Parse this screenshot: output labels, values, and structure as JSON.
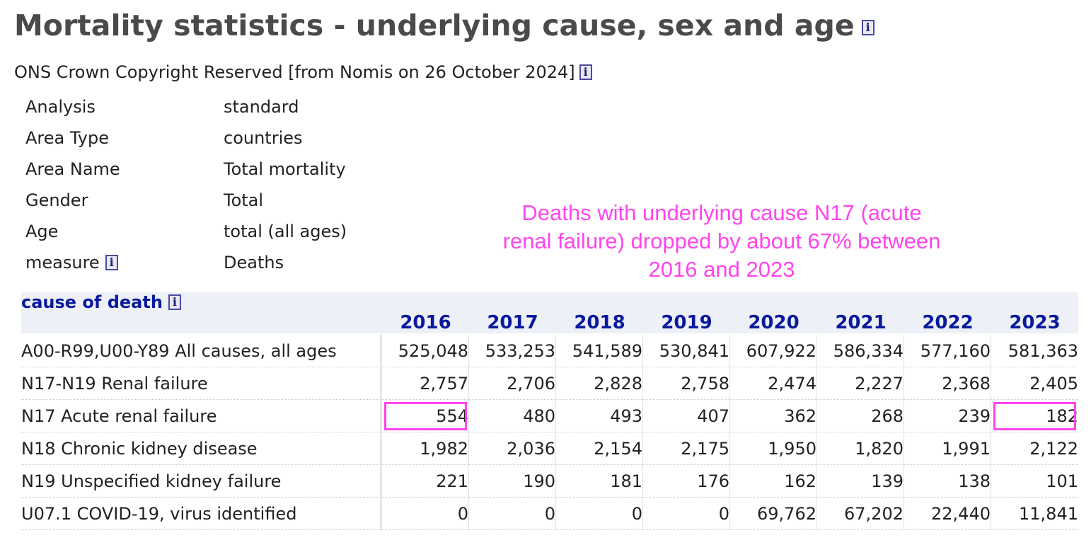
{
  "title": "Mortality statistics - underlying cause, sex and age",
  "source": "ONS Crown Copyright Reserved [from Nomis on 26 October 2024]",
  "meta": [
    {
      "label": "Analysis",
      "value": "standard"
    },
    {
      "label": "Area Type",
      "value": "countries"
    },
    {
      "label": "Area Name",
      "value": "Total mortality"
    },
    {
      "label": "Gender",
      "value": "Total"
    },
    {
      "label": "Age",
      "value": "total (all ages)"
    },
    {
      "label": "measure",
      "value": "Deaths"
    }
  ],
  "annotation": "Deaths with underlying cause N17 (acute renal failure) dropped by about 67% between 2016 and 2023",
  "table": {
    "cause_header": "cause of death",
    "years": [
      "2016",
      "2017",
      "2018",
      "2019",
      "2020",
      "2021",
      "2022",
      "2023"
    ],
    "rows": [
      {
        "cause": "A00-R99,U00-Y89 All causes, all ages",
        "values": [
          "525,048",
          "533,253",
          "541,589",
          "530,841",
          "607,922",
          "586,334",
          "577,160",
          "581,363"
        ]
      },
      {
        "cause": "N17-N19 Renal failure",
        "values": [
          "2,757",
          "2,706",
          "2,828",
          "2,758",
          "2,474",
          "2,227",
          "2,368",
          "2,405"
        ]
      },
      {
        "cause": "N17 Acute renal failure",
        "values": [
          "554",
          "480",
          "493",
          "407",
          "362",
          "268",
          "239",
          "182"
        ]
      },
      {
        "cause": "N18 Chronic kidney disease",
        "values": [
          "1,982",
          "2,036",
          "2,154",
          "2,175",
          "1,950",
          "1,820",
          "1,991",
          "2,122"
        ]
      },
      {
        "cause": "N19 Unspecified kidney failure",
        "values": [
          "221",
          "190",
          "181",
          "176",
          "162",
          "139",
          "138",
          "101"
        ]
      },
      {
        "cause": "U07.1 COVID-19, virus identified",
        "values": [
          "0",
          "0",
          "0",
          "0",
          "69,762",
          "67,202",
          "22,440",
          "11,841"
        ]
      }
    ]
  },
  "highlight_color": "#ff44ee",
  "link_color": "#0a1a9c"
}
